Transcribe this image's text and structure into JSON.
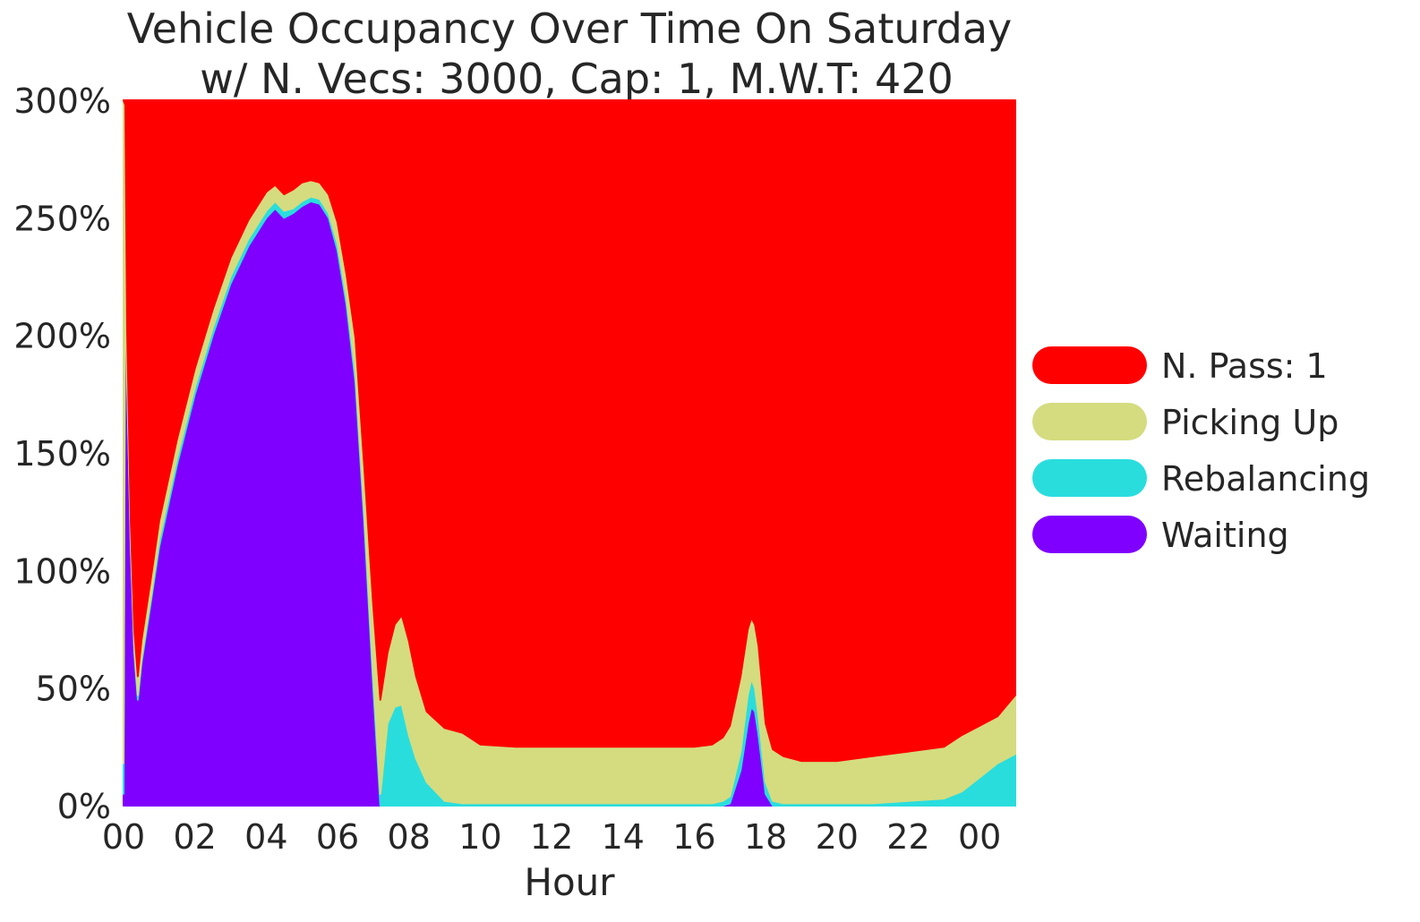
{
  "chart_data": {
    "type": "area",
    "stacked": true,
    "title": "Vehicle Occupancy Over Time On Saturday",
    "subtitle": "w/ N. Vecs: 3000, Cap: 1, M.W.T: 420",
    "xlabel": "Hour",
    "ylabel": "",
    "x_ticks": [
      "00",
      "02",
      "04",
      "06",
      "08",
      "10",
      "12",
      "14",
      "16",
      "18",
      "20",
      "22",
      "00"
    ],
    "y_ticks": [
      "0%",
      "50%",
      "100%",
      "150%",
      "200%",
      "250%",
      "300%"
    ],
    "xlim": [
      0,
      25
    ],
    "ylim": [
      0,
      300
    ],
    "grid": false,
    "legend_position": "right",
    "x": [
      0,
      0.05,
      0.1,
      0.2,
      0.3,
      0.4,
      0.5,
      0.75,
      1,
      1.5,
      2,
      2.5,
      3,
      3.5,
      4,
      4.25,
      4.5,
      4.75,
      5,
      5.25,
      5.5,
      5.75,
      6,
      6.25,
      6.5,
      6.75,
      7,
      7.2,
      7.4,
      7.6,
      7.8,
      8,
      8.2,
      8.5,
      9,
      9.5,
      10,
      11,
      12,
      13,
      14,
      15,
      16,
      16.5,
      16.8,
      17,
      17.3,
      17.5,
      17.6,
      17.7,
      17.8,
      18,
      18.2,
      18.5,
      19,
      20,
      21,
      22,
      23,
      23.5,
      24,
      24.5,
      25
    ],
    "series": [
      {
        "name": "Waiting",
        "color": "#7f00ff",
        "values": [
          5,
          250,
          180,
          110,
          65,
          45,
          60,
          85,
          110,
          145,
          175,
          200,
          222,
          238,
          250,
          254,
          250,
          252,
          255,
          257,
          256,
          250,
          236,
          213,
          180,
          120,
          50,
          0,
          0,
          0,
          0,
          0,
          0,
          0,
          0,
          0,
          0,
          0,
          0,
          0,
          0,
          0,
          0,
          0,
          0,
          1,
          15,
          35,
          42,
          40,
          30,
          5,
          0,
          0,
          0,
          0,
          0,
          0,
          0,
          0,
          0,
          0,
          0
        ]
      },
      {
        "name": "Rebalancing",
        "color": "#2adddd",
        "values": [
          13,
          3,
          2,
          2,
          2,
          2,
          2,
          2,
          3,
          3,
          3,
          3,
          3,
          3,
          3,
          3,
          3,
          2,
          2,
          2,
          2,
          2,
          3,
          3,
          4,
          4,
          5,
          5,
          35,
          42,
          43,
          30,
          20,
          10,
          2,
          1,
          1,
          1,
          1,
          1,
          1,
          1,
          1,
          1,
          2,
          3,
          8,
          12,
          12,
          10,
          8,
          5,
          2,
          1,
          1,
          1,
          1,
          2,
          3,
          6,
          12,
          18,
          22
        ]
      },
      {
        "name": "Picking Up",
        "color": "#d4dc7f",
        "values": [
          282,
          45,
          20,
          10,
          8,
          8,
          8,
          8,
          8,
          8,
          8,
          8,
          8,
          8,
          8,
          7,
          7,
          8,
          8,
          7,
          7,
          8,
          9,
          10,
          15,
          20,
          30,
          40,
          30,
          35,
          38,
          40,
          35,
          30,
          31,
          30,
          25,
          24,
          24,
          24,
          24,
          24,
          24,
          25,
          27,
          30,
          32,
          28,
          26,
          27,
          30,
          25,
          22,
          20,
          18,
          18,
          20,
          21,
          22,
          24,
          22,
          20,
          25
        ]
      },
      {
        "name": "N. Pass: 1",
        "color": "#ff0000",
        "values": [
          0,
          2,
          98,
          178,
          225,
          245,
          230,
          205,
          179,
          144,
          114,
          89,
          67,
          51,
          39,
          36,
          40,
          38,
          35,
          34,
          35,
          40,
          52,
          74,
          101,
          156,
          215,
          255,
          235,
          223,
          219,
          230,
          245,
          260,
          267,
          269,
          274,
          275,
          275,
          275,
          275,
          275,
          275,
          274,
          271,
          266,
          245,
          225,
          220,
          223,
          232,
          265,
          276,
          279,
          281,
          281,
          279,
          277,
          275,
          270,
          266,
          262,
          253
        ]
      }
    ],
    "legend_order": [
      "N. Pass: 1",
      "Picking Up",
      "Rebalancing",
      "Waiting"
    ]
  }
}
